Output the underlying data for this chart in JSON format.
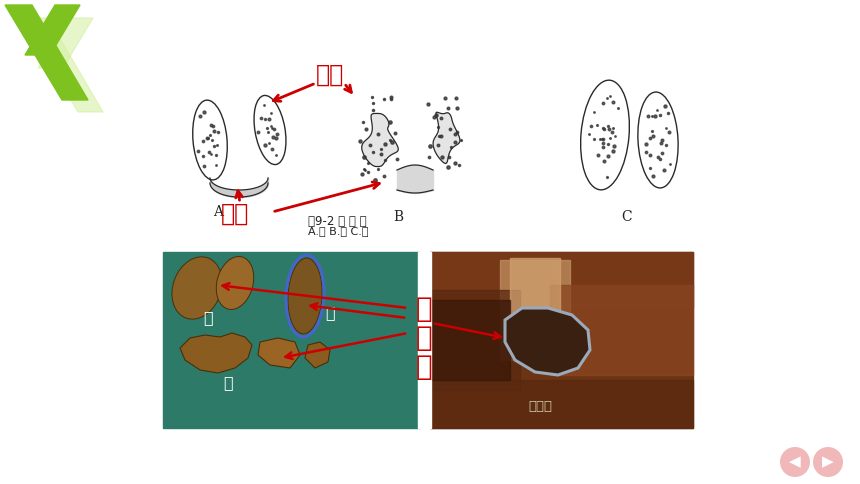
{
  "bg_color": "#ffffff",
  "fig_width": 8.6,
  "fig_height": 4.84,
  "dpi": 100,
  "green_chevron_color": "#7dc21e",
  "green_chevron_light": "#d4f0a0",
  "red_color": "#cc0000",
  "blue_circle_color": "#5577cc",
  "pink_nav_color": "#f0b8b8",
  "label_side_ye": "侧叶",
  "label_xia_xia": "腺峡",
  "label_jia": "甲\n状\n腺",
  "fig9_caption": "图9-2 甲 状 腺",
  "fig9_sub": "A.马 B.牛 C.猪",
  "label_A": "A",
  "label_B": "B",
  "label_C": "C",
  "label_ma": "马",
  "label_zhu": "猪",
  "label_niu": "牛",
  "label_jiazhuangxian": "甲状腺",
  "teal_bg": "#2d7a68",
  "anatomy_bg": "#5a2e18"
}
